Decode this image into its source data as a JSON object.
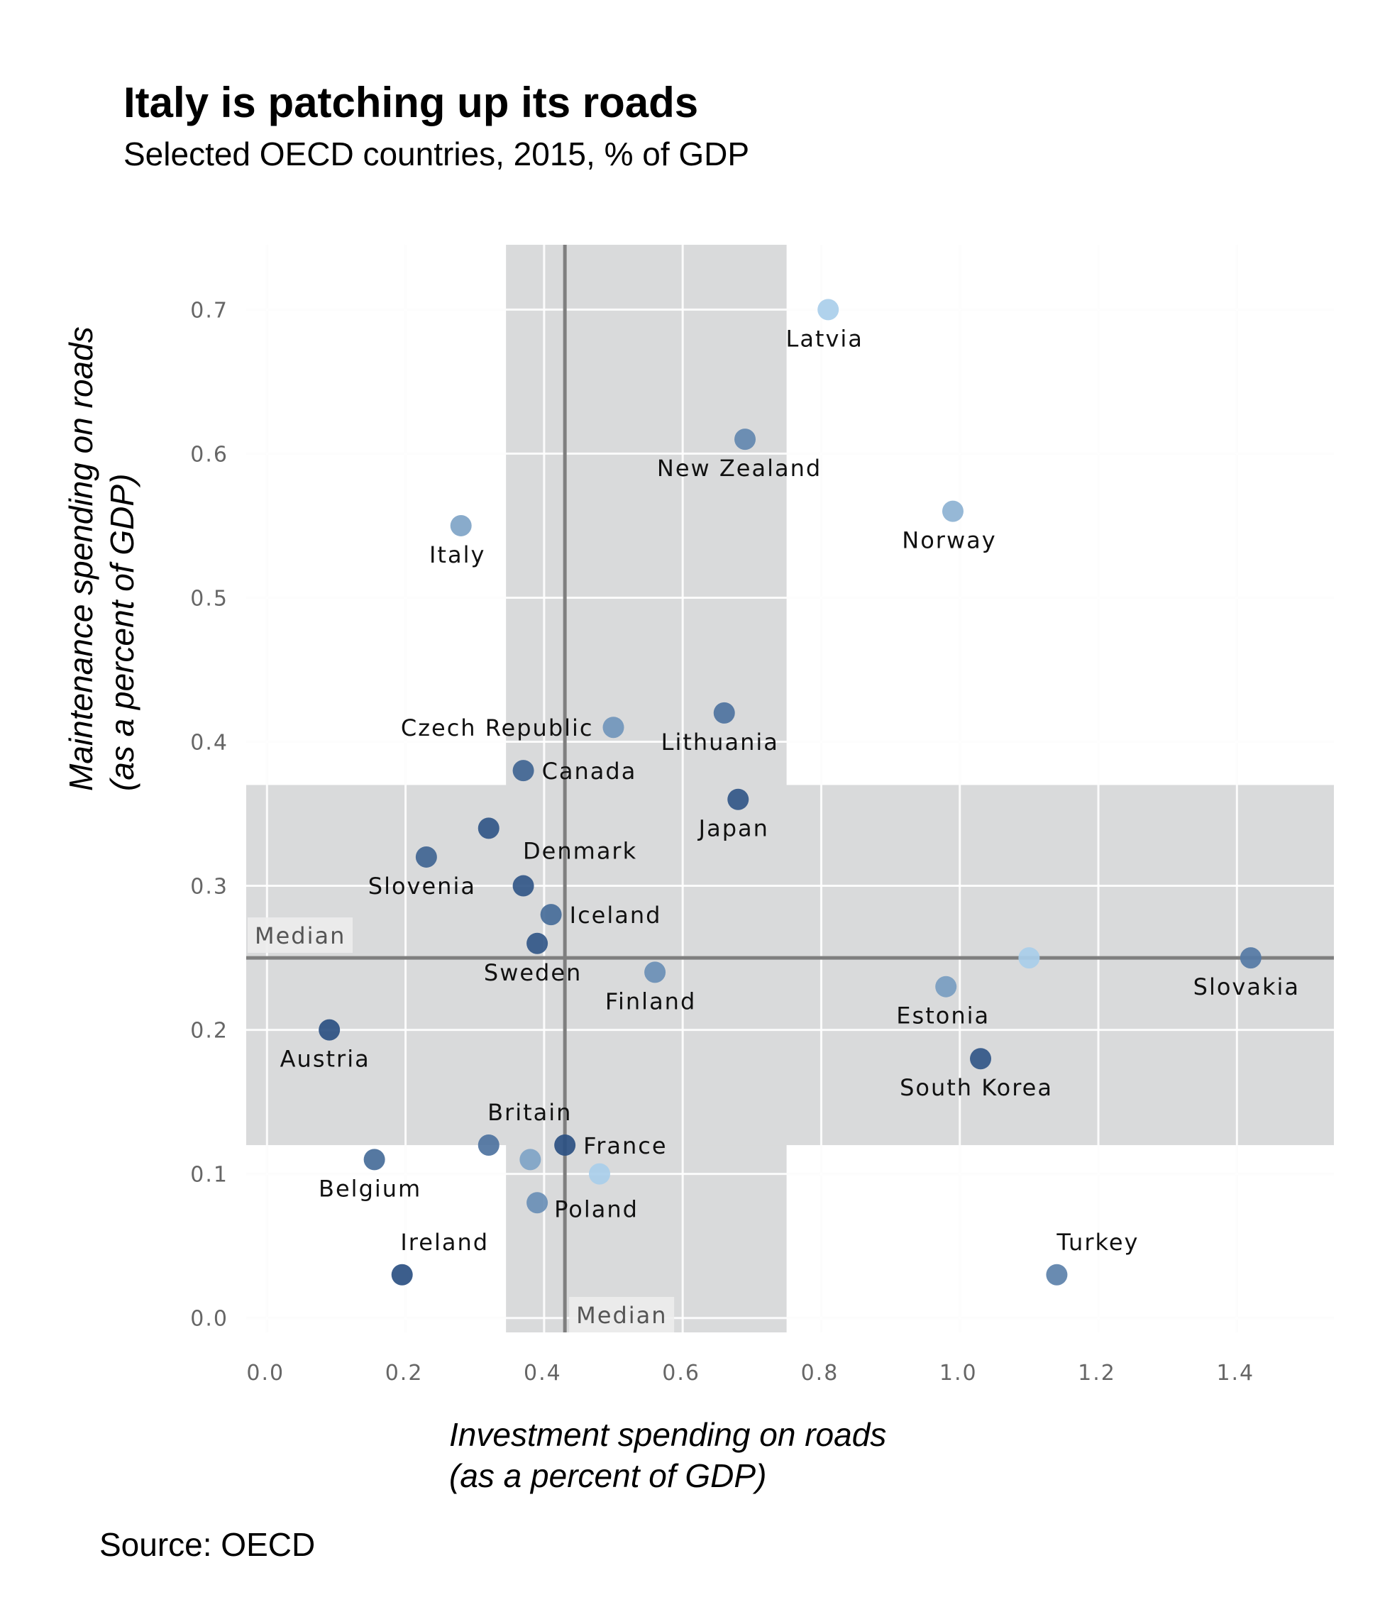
{
  "header": {
    "title": "Italy is patching up its roads",
    "subtitle": "Selected OECD countries, 2015, % of GDP"
  },
  "footer": {
    "source": "Source: OECD"
  },
  "colors": {
    "band": "#d9dadb",
    "median_line": "#7f7f7f",
    "grid": "#f0f0f0",
    "points_dark": "#2f5486",
    "points_mid": "#4d7bb0",
    "points_light": "#b7dcf5"
  },
  "chart_data": {
    "type": "scatter",
    "title": "Italy is patching up its roads",
    "subtitle": "Selected OECD countries, 2015, % of GDP",
    "xlabel": [
      "Investment spending on roads",
      "(as a percent of GDP)"
    ],
    "ylabel": [
      "Maintenance spending on roads",
      "(as a percent of GDP)"
    ],
    "xlim": [
      -0.03,
      1.54
    ],
    "ylim": [
      -0.01,
      0.745
    ],
    "xticks": [
      0.0,
      0.2,
      0.4,
      0.6,
      0.8,
      1.0,
      1.2,
      1.4
    ],
    "xtick_labels": [
      "0.0",
      "0.2",
      "0.4",
      "0.6",
      "0.8",
      "1.0",
      "1.2",
      "1.4"
    ],
    "yticks": [
      0.0,
      0.1,
      0.2,
      0.3,
      0.4,
      0.5,
      0.6,
      0.7
    ],
    "ytick_labels": [
      "0.0",
      "0.1",
      "0.2",
      "0.3",
      "0.4",
      "0.5",
      "0.6",
      "0.7"
    ],
    "grid": true,
    "median_x": 0.43,
    "median_y": 0.25,
    "median_label": "Median",
    "band_x": [
      0.345,
      0.75
    ],
    "band_y": [
      0.12,
      0.37
    ],
    "points": [
      {
        "label": "Latvia",
        "x": 0.81,
        "y": 0.7,
        "shade": 0.1
      },
      {
        "label": "New Zealand",
        "x": 0.69,
        "y": 0.61,
        "shade": 0.6
      },
      {
        "label": "Norway",
        "x": 0.99,
        "y": 0.56,
        "shade": 0.3
      },
      {
        "label": "Italy",
        "x": 0.28,
        "y": 0.55,
        "shade": 0.4
      },
      {
        "label": "Czech Republic",
        "x": 0.5,
        "y": 0.41,
        "shade": 0.5
      },
      {
        "label": "Lithuania",
        "x": 0.66,
        "y": 0.42,
        "shade": 0.75
      },
      {
        "label": "Canada",
        "x": 0.37,
        "y": 0.38,
        "shade": 0.85
      },
      {
        "label": "Japan",
        "x": 0.68,
        "y": 0.36,
        "shade": 0.95
      },
      {
        "label": "",
        "x": 0.32,
        "y": 0.34,
        "shade": 0.95
      },
      {
        "label": "Denmark",
        "x": 0.37,
        "y": 0.3,
        "shade": 0.95
      },
      {
        "label": "Slovenia",
        "x": 0.23,
        "y": 0.32,
        "shade": 0.85
      },
      {
        "label": "Iceland",
        "x": 0.41,
        "y": 0.28,
        "shade": 0.8
      },
      {
        "label": "Sweden",
        "x": 0.39,
        "y": 0.26,
        "shade": 0.95
      },
      {
        "label": "Finland",
        "x": 0.56,
        "y": 0.24,
        "shade": 0.55
      },
      {
        "label": "",
        "x": 1.1,
        "y": 0.25,
        "shade": 0.1
      },
      {
        "label": "Slovakia",
        "x": 1.42,
        "y": 0.25,
        "shade": 0.7
      },
      {
        "label": "Estonia",
        "x": 0.98,
        "y": 0.23,
        "shade": 0.45
      },
      {
        "label": "South Korea",
        "x": 1.03,
        "y": 0.18,
        "shade": 0.95
      },
      {
        "label": "Austria",
        "x": 0.09,
        "y": 0.2,
        "shade": 1.0
      },
      {
        "label": "Britain",
        "x": 0.32,
        "y": 0.12,
        "shade": 0.75
      },
      {
        "label": "France",
        "x": 0.43,
        "y": 0.12,
        "shade": 1.0
      },
      {
        "label": "",
        "x": 0.38,
        "y": 0.11,
        "shade": 0.4
      },
      {
        "label": "",
        "x": 0.48,
        "y": 0.1,
        "shade": 0.1
      },
      {
        "label": "Belgium",
        "x": 0.155,
        "y": 0.11,
        "shade": 0.8
      },
      {
        "label": "Poland",
        "x": 0.39,
        "y": 0.08,
        "shade": 0.55
      },
      {
        "label": "Ireland",
        "x": 0.195,
        "y": 0.03,
        "shade": 1.0
      },
      {
        "label": "Turkey",
        "x": 1.14,
        "y": 0.03,
        "shade": 0.65
      }
    ]
  }
}
